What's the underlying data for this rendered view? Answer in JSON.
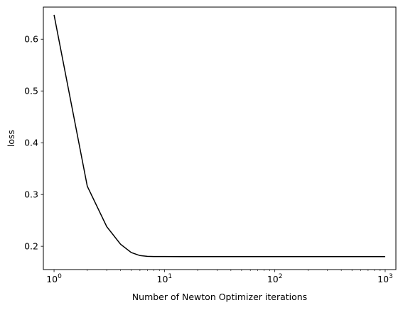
{
  "chart_data": {
    "type": "line",
    "title": "",
    "xlabel": "Number of Newton Optimizer iterations",
    "ylabel": "loss",
    "x_scale": "log",
    "xlim": [
      0.8,
      1250
    ],
    "ylim": [
      0.155,
      0.662
    ],
    "x_ticks": [
      {
        "value": 1,
        "base": "10",
        "exp": "0"
      },
      {
        "value": 10,
        "base": "10",
        "exp": "1"
      },
      {
        "value": 100,
        "base": "10",
        "exp": "2"
      },
      {
        "value": 1000,
        "base": "10",
        "exp": "3"
      }
    ],
    "y_ticks": [
      {
        "value": 0.2,
        "label": "0.2"
      },
      {
        "value": 0.3,
        "label": "0.3"
      },
      {
        "value": 0.4,
        "label": "0.4"
      },
      {
        "value": 0.5,
        "label": "0.5"
      },
      {
        "value": 0.6,
        "label": "0.6"
      }
    ],
    "grid": false,
    "color": "#000000",
    "series": [
      {
        "x": [
          1,
          2,
          3,
          4,
          5,
          6,
          7,
          8,
          10,
          20,
          50,
          100,
          200,
          500,
          1000
        ],
        "values": [
          0.647,
          0.316,
          0.238,
          0.204,
          0.188,
          0.182,
          0.1805,
          0.1802,
          0.1801,
          0.18,
          0.18,
          0.18,
          0.18,
          0.18,
          0.18
        ]
      }
    ]
  }
}
